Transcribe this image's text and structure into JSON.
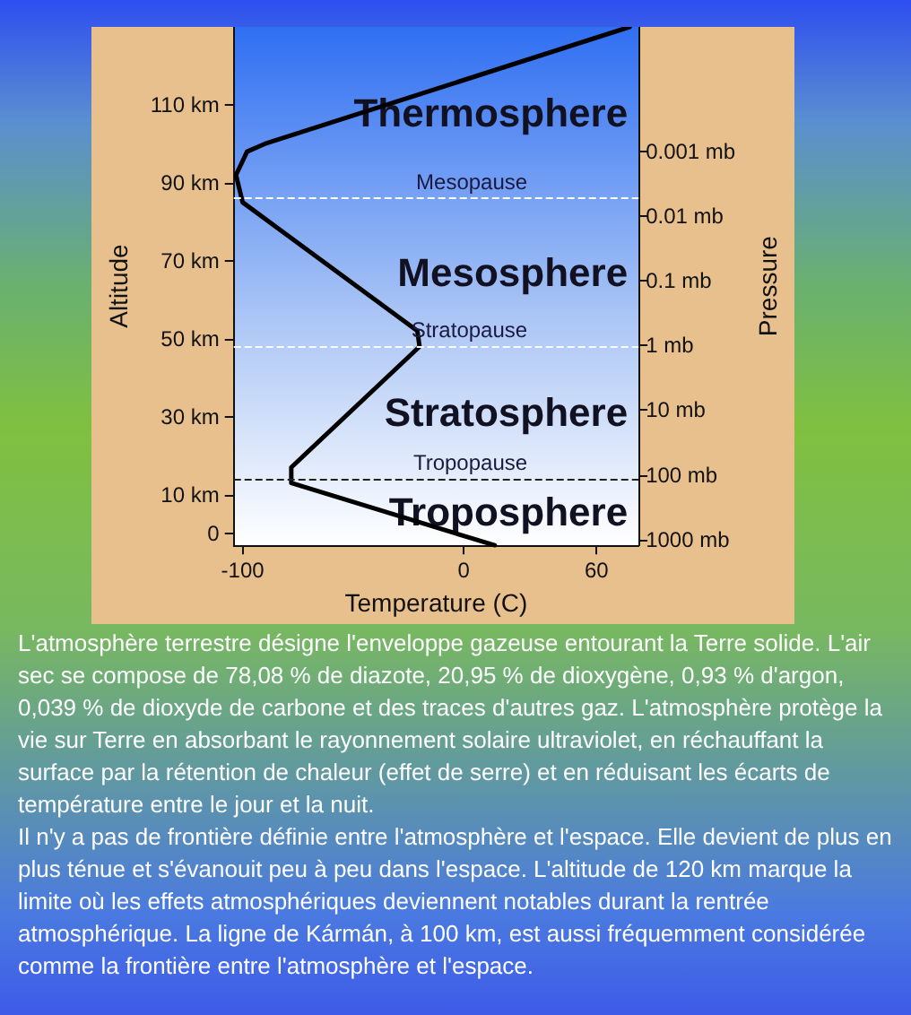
{
  "chart_data": {
    "type": "line",
    "xlabel": "Temperature (C)",
    "ylabel": "Altitude",
    "y2label": "Pressure",
    "x": [
      14,
      -78,
      -78,
      -20,
      -21,
      -100,
      -103,
      -98,
      -90,
      75
    ],
    "values": [
      -3,
      13,
      17,
      48,
      52,
      85,
      92,
      98,
      100,
      130
    ],
    "color": "#000000",
    "marker": "none",
    "line_style": "solid",
    "grid": false,
    "xlim": [
      -104,
      79
    ],
    "xticks": [
      -100,
      0,
      60
    ],
    "ylim": [
      -3,
      130
    ],
    "yticks": [
      0,
      {
        "value": 10,
        "label": "10 km"
      },
      {
        "value": 30,
        "label": "30 km"
      },
      {
        "value": 50,
        "label": "50 km"
      },
      {
        "value": 70,
        "label": "70 km"
      },
      {
        "value": 90,
        "label": "90 km"
      },
      {
        "value": 110,
        "label": "110 km"
      }
    ],
    "log": "y2",
    "y2lim": [
      1230,
      1.2e-05
    ],
    "y2ticks": [
      {
        "value": 1000,
        "label": "1000 mb"
      },
      {
        "value": 100,
        "label": "100 mb"
      },
      {
        "value": 10,
        "label": "10 mb"
      },
      {
        "value": 1,
        "label": "1 mb"
      },
      {
        "value": 0.1,
        "label": "0.1 mb"
      },
      {
        "value": 0.01,
        "label": "0.01 mb"
      },
      {
        "value": 0.001,
        "label": "0.001 mb"
      }
    ],
    "ref_lines": [
      {
        "axis": "y",
        "value": 14,
        "label": "Tropopause",
        "color": "#222222",
        "line_style": "dashed"
      },
      {
        "axis": "y",
        "value": 48,
        "label": "Stratopause",
        "color": "#ffffff",
        "line_style": "dashed"
      },
      {
        "axis": "y",
        "value": 86,
        "label": "Mesopause",
        "color": "#ffffff",
        "line_style": "dashed"
      }
    ],
    "annotations": [
      "Troposphere",
      "Stratosphere",
      "Mesosphere",
      "Thermosphere",
      "L'atmosphère terrestre désigne l'enveloppe gazeuse entourant la Terre solide. L'air sec se compose de 78,08 % de diazote, 20,95 % de dioxygène, 0,93 % d'argon, 0,039 % de dioxyde de carbone et des traces d'autres gaz. L'atmosphère protège la vie sur Terre en absorbant le rayonnement solaire ultraviolet, en réchauffant la surface par la rétention de chaleur (effet de serre) et en réduisant les écarts de température entre le jour et la nuit.",
      "Il n'y a pas de frontière définie entre l'atmosphère et l'espace. Elle devient de plus en plus ténue et s'évanouit peu à peu dans l'espace. L'altitude de 120 km marque la limite où les effets atmosphériques deviennent notables durant la rentrée atmosphérique. La ligne de Kármán, à 100 km, est aussi fréquemment considérée comme la frontière entre l'atmosphère et l'espace."
    ]
  }
}
